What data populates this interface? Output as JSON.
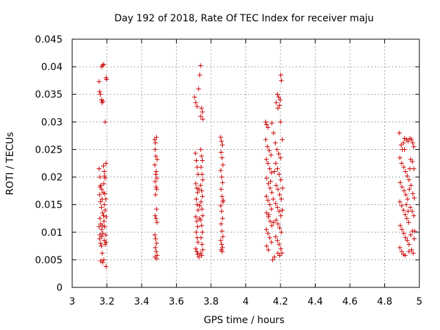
{
  "chart_data": {
    "type": "scatter",
    "title": "Day 192 of 2018, Rate Of TEC Index for receiver maju",
    "xlabel": "GPS time / hours",
    "ylabel": "ROTI / TECUs",
    "xlim": [
      3,
      5
    ],
    "ylim": [
      0,
      0.045
    ],
    "x_ticks": [
      3,
      3.2,
      3.4,
      3.6,
      3.8,
      4,
      4.2,
      4.4,
      4.6,
      4.8,
      5
    ],
    "x_tick_labels": [
      "3",
      "3.2",
      "3.4",
      "3.6",
      "3.8",
      "4",
      "4.2",
      "4.4",
      "4.6",
      "4.8",
      "5"
    ],
    "y_ticks": [
      0,
      0.005,
      0.01,
      0.015,
      0.02,
      0.025,
      0.03,
      0.035,
      0.04,
      0.045
    ],
    "y_tick_labels": [
      "0",
      "0.005",
      "0.01",
      "0.015",
      "0.02",
      "0.025",
      "0.03",
      "0.035",
      "0.04",
      "0.045"
    ],
    "grid": true,
    "marker": "+",
    "marker_color": "#cc0000",
    "series": [
      {
        "name": "ROTI",
        "points": [
          [
            3.155,
            0.0373
          ],
          [
            3.158,
            0.0355
          ],
          [
            3.162,
            0.035
          ],
          [
            3.168,
            0.034
          ],
          [
            3.172,
            0.0335
          ],
          [
            3.178,
            0.0338
          ],
          [
            3.17,
            0.04
          ],
          [
            3.175,
            0.0403
          ],
          [
            3.182,
            0.0404
          ],
          [
            3.195,
            0.038
          ],
          [
            3.198,
            0.0377
          ],
          [
            3.19,
            0.03
          ],
          [
            3.155,
            0.0215
          ],
          [
            3.16,
            0.02
          ],
          [
            3.165,
            0.0185
          ],
          [
            3.17,
            0.0178
          ],
          [
            3.158,
            0.0168
          ],
          [
            3.163,
            0.0155
          ],
          [
            3.168,
            0.0145
          ],
          [
            3.175,
            0.0135
          ],
          [
            3.16,
            0.0125
          ],
          [
            3.165,
            0.0115
          ],
          [
            3.17,
            0.0105
          ],
          [
            3.175,
            0.0098
          ],
          [
            3.158,
            0.0088
          ],
          [
            3.163,
            0.008
          ],
          [
            3.168,
            0.0075
          ],
          [
            3.173,
            0.0062
          ],
          [
            3.165,
            0.0048
          ],
          [
            3.175,
            0.0045
          ],
          [
            3.182,
            0.005
          ],
          [
            3.195,
            0.0038
          ],
          [
            3.18,
            0.022
          ],
          [
            3.185,
            0.021
          ],
          [
            3.19,
            0.0198
          ],
          [
            3.195,
            0.0225
          ],
          [
            3.182,
            0.0188
          ],
          [
            3.188,
            0.017
          ],
          [
            3.193,
            0.016
          ],
          [
            3.185,
            0.015
          ],
          [
            3.19,
            0.014
          ],
          [
            3.195,
            0.0128
          ],
          [
            3.183,
            0.012
          ],
          [
            3.188,
            0.011
          ],
          [
            3.193,
            0.0095
          ],
          [
            3.185,
            0.0085
          ],
          [
            3.19,
            0.0078
          ],
          [
            3.195,
            0.0082
          ],
          [
            3.155,
            0.011
          ],
          [
            3.16,
            0.0095
          ],
          [
            3.172,
            0.016
          ],
          [
            3.178,
            0.0172
          ],
          [
            3.18,
            0.013
          ],
          [
            3.16,
            0.0182
          ],
          [
            3.175,
            0.0112
          ],
          [
            3.187,
            0.0202
          ],
          [
            3.17,
            0.0092
          ],
          [
            3.475,
            0.0268
          ],
          [
            3.48,
            0.0262
          ],
          [
            3.485,
            0.0272
          ],
          [
            3.478,
            0.025
          ],
          [
            3.482,
            0.0238
          ],
          [
            3.49,
            0.0232
          ],
          [
            3.476,
            0.0222
          ],
          [
            3.484,
            0.021
          ],
          [
            3.488,
            0.0198
          ],
          [
            3.478,
            0.0192
          ],
          [
            3.483,
            0.0182
          ],
          [
            3.487,
            0.0178
          ],
          [
            3.48,
            0.0168
          ],
          [
            3.486,
            0.0142
          ],
          [
            3.478,
            0.013
          ],
          [
            3.483,
            0.0125
          ],
          [
            3.488,
            0.0118
          ],
          [
            3.476,
            0.0095
          ],
          [
            3.481,
            0.0088
          ],
          [
            3.486,
            0.008
          ],
          [
            3.479,
            0.0072
          ],
          [
            3.484,
            0.0065
          ],
          [
            3.489,
            0.0058
          ],
          [
            3.477,
            0.0055
          ],
          [
            3.487,
            0.0052
          ],
          [
            3.482,
            0.0205
          ],
          [
            3.705,
            0.0345
          ],
          [
            3.712,
            0.0335
          ],
          [
            3.72,
            0.0328
          ],
          [
            3.728,
            0.036
          ],
          [
            3.735,
            0.0385
          ],
          [
            3.74,
            0.0402
          ],
          [
            3.745,
            0.0325
          ],
          [
            3.75,
            0.0318
          ],
          [
            3.752,
            0.0305
          ],
          [
            3.74,
            0.031
          ],
          [
            3.71,
            0.0243
          ],
          [
            3.715,
            0.023
          ],
          [
            3.72,
            0.0218
          ],
          [
            3.725,
            0.0205
          ],
          [
            3.712,
            0.0188
          ],
          [
            3.718,
            0.018
          ],
          [
            3.722,
            0.0172
          ],
          [
            3.715,
            0.016
          ],
          [
            3.72,
            0.015
          ],
          [
            3.725,
            0.014
          ],
          [
            3.712,
            0.0128
          ],
          [
            3.718,
            0.012
          ],
          [
            3.723,
            0.011
          ],
          [
            3.715,
            0.01
          ],
          [
            3.72,
            0.009
          ],
          [
            3.725,
            0.0082
          ],
          [
            3.712,
            0.007
          ],
          [
            3.718,
            0.0065
          ],
          [
            3.723,
            0.006
          ],
          [
            3.73,
            0.0055
          ],
          [
            3.74,
            0.025
          ],
          [
            3.745,
            0.0238
          ],
          [
            3.75,
            0.023
          ],
          [
            3.742,
            0.0218
          ],
          [
            3.748,
            0.0205
          ],
          [
            3.752,
            0.0195
          ],
          [
            3.74,
            0.0185
          ],
          [
            3.746,
            0.0175
          ],
          [
            3.75,
            0.0165
          ],
          [
            3.742,
            0.0155
          ],
          [
            3.748,
            0.0142
          ],
          [
            3.752,
            0.013
          ],
          [
            3.74,
            0.0122
          ],
          [
            3.746,
            0.0112
          ],
          [
            3.75,
            0.01
          ],
          [
            3.742,
            0.009
          ],
          [
            3.748,
            0.0078
          ],
          [
            3.752,
            0.0068
          ],
          [
            3.74,
            0.0062
          ],
          [
            3.746,
            0.0058
          ],
          [
            3.735,
            0.0148
          ],
          [
            3.73,
            0.0178
          ],
          [
            3.733,
            0.0125
          ],
          [
            3.855,
            0.0272
          ],
          [
            3.86,
            0.0265
          ],
          [
            3.865,
            0.0258
          ],
          [
            3.858,
            0.0245
          ],
          [
            3.863,
            0.0235
          ],
          [
            3.868,
            0.0222
          ],
          [
            3.856,
            0.0212
          ],
          [
            3.861,
            0.02
          ],
          [
            3.866,
            0.019
          ],
          [
            3.858,
            0.0178
          ],
          [
            3.863,
            0.0165
          ],
          [
            3.868,
            0.0155
          ],
          [
            3.856,
            0.0148
          ],
          [
            3.861,
            0.0138
          ],
          [
            3.866,
            0.0125
          ],
          [
            3.858,
            0.0115
          ],
          [
            3.863,
            0.0102
          ],
          [
            3.868,
            0.0092
          ],
          [
            3.856,
            0.0085
          ],
          [
            3.861,
            0.0078
          ],
          [
            3.866,
            0.0072
          ],
          [
            3.858,
            0.0068
          ],
          [
            3.864,
            0.0065
          ],
          [
            3.87,
            0.0158
          ],
          [
            4.115,
            0.03
          ],
          [
            4.12,
            0.0295
          ],
          [
            4.128,
            0.029
          ],
          [
            4.15,
            0.0298
          ],
          [
            4.16,
            0.028
          ],
          [
            4.175,
            0.0335
          ],
          [
            4.182,
            0.035
          ],
          [
            4.19,
            0.0345
          ],
          [
            4.198,
            0.034
          ],
          [
            4.202,
            0.0385
          ],
          [
            4.205,
            0.0375
          ],
          [
            4.195,
            0.033
          ],
          [
            4.185,
            0.0325
          ],
          [
            4.2,
            0.03
          ],
          [
            4.115,
            0.0268
          ],
          [
            4.125,
            0.0255
          ],
          [
            4.135,
            0.0248
          ],
          [
            4.145,
            0.024
          ],
          [
            4.118,
            0.0232
          ],
          [
            4.128,
            0.0225
          ],
          [
            4.138,
            0.0215
          ],
          [
            4.148,
            0.0208
          ],
          [
            4.12,
            0.0198
          ],
          [
            4.13,
            0.0188
          ],
          [
            4.14,
            0.018
          ],
          [
            4.15,
            0.0172
          ],
          [
            4.118,
            0.0165
          ],
          [
            4.128,
            0.0158
          ],
          [
            4.138,
            0.015
          ],
          [
            4.148,
            0.0142
          ],
          [
            4.12,
            0.0135
          ],
          [
            4.13,
            0.0128
          ],
          [
            4.14,
            0.012
          ],
          [
            4.15,
            0.0112
          ],
          [
            4.118,
            0.0105
          ],
          [
            4.128,
            0.0098
          ],
          [
            4.138,
            0.009
          ],
          [
            4.148,
            0.0082
          ],
          [
            4.12,
            0.0075
          ],
          [
            4.13,
            0.0068
          ],
          [
            4.155,
            0.005
          ],
          [
            4.165,
            0.0055
          ],
          [
            4.17,
            0.0262
          ],
          [
            4.18,
            0.025
          ],
          [
            4.19,
            0.0242
          ],
          [
            4.2,
            0.0235
          ],
          [
            4.172,
            0.0225
          ],
          [
            4.182,
            0.0215
          ],
          [
            4.192,
            0.0205
          ],
          [
            4.202,
            0.0195
          ],
          [
            4.175,
            0.0185
          ],
          [
            4.185,
            0.0178
          ],
          [
            4.195,
            0.0168
          ],
          [
            4.205,
            0.016
          ],
          [
            4.172,
            0.0152
          ],
          [
            4.182,
            0.0145
          ],
          [
            4.192,
            0.0138
          ],
          [
            4.202,
            0.013
          ],
          [
            4.175,
            0.0122
          ],
          [
            4.185,
            0.0115
          ],
          [
            4.195,
            0.0108
          ],
          [
            4.205,
            0.01
          ],
          [
            4.172,
            0.0092
          ],
          [
            4.182,
            0.0085
          ],
          [
            4.192,
            0.0078
          ],
          [
            4.202,
            0.007
          ],
          [
            4.185,
            0.0062
          ],
          [
            4.195,
            0.0058
          ],
          [
            4.208,
            0.0062
          ],
          [
            4.21,
            0.0268
          ],
          [
            4.212,
            0.018
          ],
          [
            4.16,
            0.0118
          ],
          [
            4.165,
            0.021
          ],
          [
            4.158,
            0.016
          ],
          [
            4.143,
            0.0192
          ],
          [
            4.133,
            0.0132
          ],
          [
            4.21,
            0.014
          ],
          [
            4.885,
            0.028
          ],
          [
            4.895,
            0.0258
          ],
          [
            4.902,
            0.025
          ],
          [
            4.908,
            0.0262
          ],
          [
            4.915,
            0.027
          ],
          [
            4.925,
            0.0268
          ],
          [
            4.935,
            0.0265
          ],
          [
            4.945,
            0.027
          ],
          [
            4.955,
            0.0268
          ],
          [
            4.962,
            0.0262
          ],
          [
            4.968,
            0.0255
          ],
          [
            4.888,
            0.0235
          ],
          [
            4.898,
            0.0225
          ],
          [
            4.91,
            0.0218
          ],
          [
            4.92,
            0.021
          ],
          [
            4.93,
            0.0202
          ],
          [
            4.94,
            0.0195
          ],
          [
            4.95,
            0.0232
          ],
          [
            4.96,
            0.0228
          ],
          [
            4.968,
            0.0215
          ],
          [
            4.89,
            0.019
          ],
          [
            4.9,
            0.0182
          ],
          [
            4.912,
            0.0175
          ],
          [
            4.922,
            0.0168
          ],
          [
            4.932,
            0.016
          ],
          [
            4.942,
            0.0178
          ],
          [
            4.952,
            0.0185
          ],
          [
            4.962,
            0.017
          ],
          [
            4.97,
            0.0162
          ],
          [
            4.888,
            0.0155
          ],
          [
            4.898,
            0.0148
          ],
          [
            4.908,
            0.014
          ],
          [
            4.918,
            0.0132
          ],
          [
            4.928,
            0.0125
          ],
          [
            4.938,
            0.0118
          ],
          [
            4.948,
            0.0145
          ],
          [
            4.958,
            0.0138
          ],
          [
            4.968,
            0.013
          ],
          [
            4.89,
            0.0112
          ],
          [
            4.9,
            0.0105
          ],
          [
            4.91,
            0.0098
          ],
          [
            4.92,
            0.009
          ],
          [
            4.93,
            0.0085
          ],
          [
            4.94,
            0.0078
          ],
          [
            4.95,
            0.0095
          ],
          [
            4.96,
            0.0102
          ],
          [
            4.97,
            0.0088
          ],
          [
            4.888,
            0.0072
          ],
          [
            4.898,
            0.0065
          ],
          [
            4.908,
            0.006
          ],
          [
            4.918,
            0.0058
          ],
          [
            4.94,
            0.0065
          ],
          [
            4.955,
            0.0068
          ],
          [
            4.965,
            0.0062
          ],
          [
            4.972,
            0.0102
          ],
          [
            4.945,
            0.0215
          ],
          [
            4.925,
            0.015
          ],
          [
            4.915,
            0.025
          ],
          [
            4.935,
            0.0138
          ]
        ]
      }
    ]
  }
}
